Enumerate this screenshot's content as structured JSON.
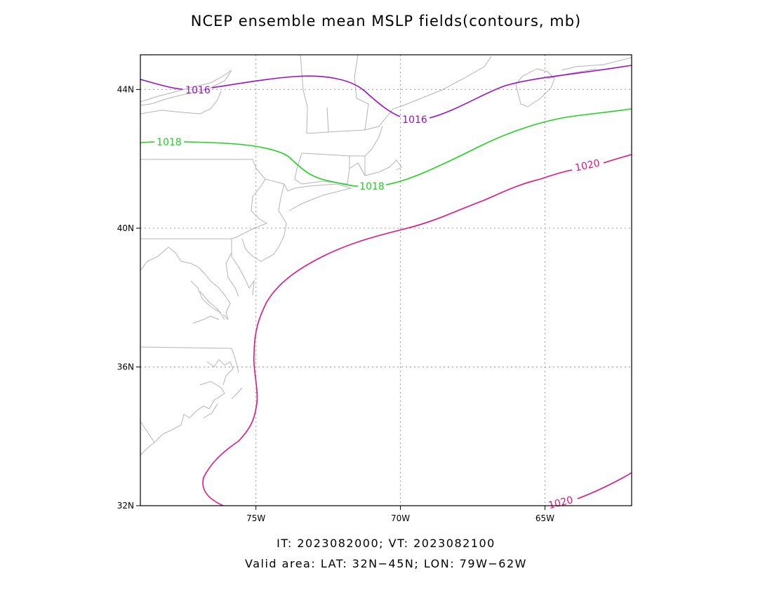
{
  "title": "NCEP ensemble mean MSLP fields(contours, mb)",
  "caption": {
    "line1": "IT: 2023082000; VT: 2023082100",
    "line2": "Valid area: LAT: 32N−45N; LON: 79W−62W"
  },
  "map": {
    "lat_range": [
      32,
      45
    ],
    "lon_range": [
      -79,
      -62
    ],
    "lat_ticks": [
      {
        "value": 44,
        "label": "44N"
      },
      {
        "value": 40,
        "label": "40N"
      },
      {
        "value": 36,
        "label": "36N"
      },
      {
        "value": 32,
        "label": "32N"
      }
    ],
    "lon_ticks": [
      {
        "value": -75,
        "label": "75W"
      },
      {
        "value": -70,
        "label": "70W"
      },
      {
        "value": -65,
        "label": "65W"
      }
    ],
    "grid": "dotted",
    "coastline_color": "#b4b4b4"
  },
  "contours": [
    {
      "level": 1016,
      "label": "1016",
      "color": "#9b10c8"
    },
    {
      "level": 1018,
      "label": "1018",
      "color": "#1ed21e"
    },
    {
      "level": 1020,
      "label": "1020",
      "color": "#e8127f"
    }
  ]
}
